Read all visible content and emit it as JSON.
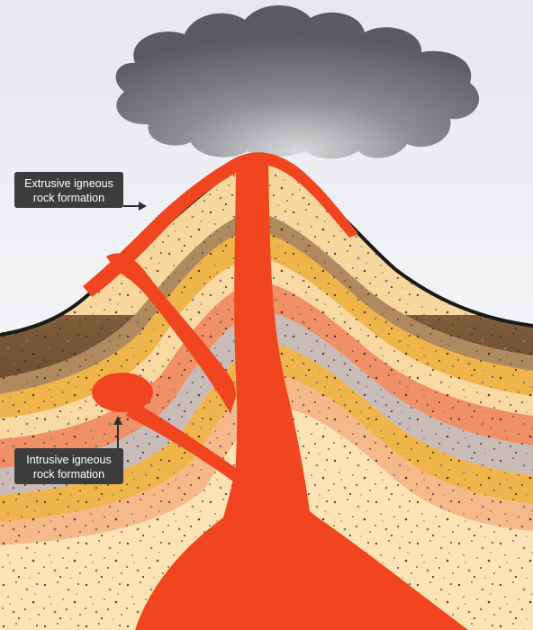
{
  "labels": {
    "extrusive": {
      "line1": "Extrusive igneous",
      "line2": "rock formation"
    },
    "intrusive": {
      "line1": "Intrusive igneous",
      "line2": "rock formation"
    }
  },
  "colors": {
    "sky_top": "#e9ebee",
    "sky_bottom": "#f3f4f6",
    "cloud": "#6f7073",
    "soil_brown": "#7a5a3a",
    "soil_light": "#a07b52",
    "crust_line": "#1a1a1a",
    "layer_gold": "#f0b54a",
    "layer_cream": "#f7d79e",
    "layer_salmon": "#ef9067",
    "layer_gray": "#c9bcb8",
    "layer_peach": "#f6c089",
    "magma": "#f0451f",
    "label_bg": "#3c3c3c",
    "label_text": "#ffffff"
  },
  "icons": {
    "extrusive_pointer": "arrow-right-icon",
    "intrusive_pointer": "arrow-up-icon"
  }
}
